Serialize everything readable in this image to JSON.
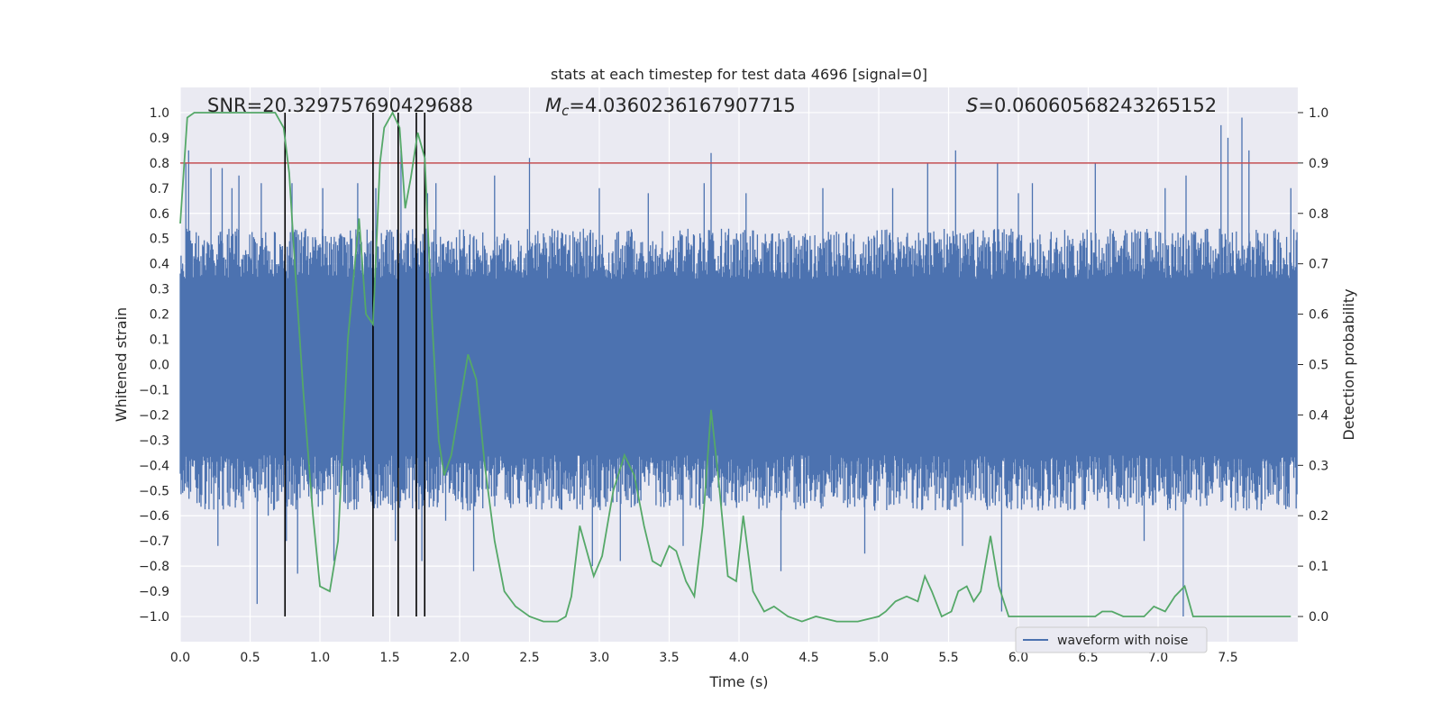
{
  "chart_data": {
    "type": "line",
    "title": "stats at each timestep for test data 4696 [signal=0]",
    "xlabel": "Time (s)",
    "ylabel": "Whitened strain",
    "y2label": "Detection probability",
    "xlim": [
      0.0,
      8.0
    ],
    "ylim": [
      -1.1,
      1.1
    ],
    "y2lim": [
      -0.05,
      1.05
    ],
    "xticks": [
      "0.0",
      "0.5",
      "1.0",
      "1.5",
      "2.0",
      "2.5",
      "3.0",
      "3.5",
      "4.0",
      "4.5",
      "5.0",
      "5.5",
      "6.0",
      "6.5",
      "7.0",
      "7.5"
    ],
    "xtick_values": [
      0.0,
      0.5,
      1.0,
      1.5,
      2.0,
      2.5,
      3.0,
      3.5,
      4.0,
      4.5,
      5.0,
      5.5,
      6.0,
      6.5,
      7.0,
      7.5
    ],
    "yticks": [
      "1.0",
      "0.9",
      "0.8",
      "0.7",
      "0.6",
      "0.5",
      "0.4",
      "0.3",
      "0.2",
      "0.1",
      "0.0",
      "−0.1",
      "−0.2",
      "−0.3",
      "−0.4",
      "−0.5",
      "−0.6",
      "−0.7",
      "−0.8",
      "−0.9",
      "−1.0"
    ],
    "ytick_values": [
      1.0,
      0.9,
      0.8,
      0.7,
      0.6,
      0.5,
      0.4,
      0.3,
      0.2,
      0.1,
      0.0,
      -0.1,
      -0.2,
      -0.3,
      -0.4,
      -0.5,
      -0.6,
      -0.7,
      -0.8,
      -0.9,
      -1.0
    ],
    "y2ticks": [
      "1.0",
      "0.9",
      "0.8",
      "0.7",
      "0.6",
      "0.5",
      "0.4",
      "0.3",
      "0.2",
      "0.1",
      "0.0"
    ],
    "y2tick_values": [
      1.0,
      0.9,
      0.8,
      0.7,
      0.6,
      0.5,
      0.4,
      0.3,
      0.2,
      0.1,
      0.0
    ],
    "grid": true,
    "legend": {
      "placement": "lower-center-right",
      "entries": [
        "waveform with noise"
      ]
    },
    "annotations": {
      "snr": "SNR=20.329757690429688",
      "mc_symbol": "M",
      "mc_sub": "c",
      "mc_value": "=4.0360236167907715",
      "s_symbol": "S",
      "s_value": "=0.06060568243265152"
    },
    "threshold": {
      "value": 0.9,
      "axis": "right",
      "color": "#c44e52"
    },
    "event_lines_x": [
      0.75,
      1.38,
      1.56,
      1.69,
      1.75
    ],
    "series": [
      {
        "name": "waveform with noise",
        "axis": "left",
        "color": "#4c72b0",
        "envelope_typical": 0.4,
        "x_peaks": [
          0.04,
          0.06,
          0.12,
          0.22,
          0.27,
          0.3,
          0.37,
          0.42,
          0.55,
          0.58,
          0.63,
          0.76,
          0.8,
          0.84,
          1.02,
          1.1,
          1.27,
          1.38,
          1.4,
          1.54,
          1.58,
          1.73,
          1.77,
          1.83,
          1.9,
          2.1,
          2.25,
          2.5,
          2.6,
          2.95,
          3.0,
          3.15,
          3.35,
          3.6,
          3.75,
          3.8,
          4.05,
          4.3,
          4.6,
          4.9,
          5.1,
          5.35,
          5.55,
          5.6,
          5.85,
          5.88,
          6.0,
          6.1,
          6.55,
          6.9,
          7.05,
          7.18,
          7.2,
          7.45,
          7.5,
          7.6,
          7.65,
          7.95
        ],
        "y_peaks": [
          0.8,
          0.85,
          -0.55,
          0.78,
          -0.72,
          0.78,
          0.7,
          0.75,
          -0.95,
          0.72,
          -0.6,
          -0.7,
          0.72,
          -0.83,
          0.7,
          -0.78,
          0.72,
          -0.55,
          0.7,
          -0.7,
          0.85,
          -0.78,
          0.68,
          0.72,
          -0.62,
          -0.82,
          0.75,
          0.82,
          -0.55,
          -0.8,
          0.7,
          -0.78,
          0.68,
          -0.72,
          0.72,
          0.84,
          0.68,
          -0.82,
          0.7,
          -0.75,
          0.7,
          0.8,
          0.85,
          -0.72,
          0.8,
          -0.98,
          0.68,
          0.72,
          0.8,
          -0.7,
          0.7,
          -1.0,
          0.75,
          0.95,
          0.9,
          0.98,
          0.85,
          0.7
        ]
      },
      {
        "name": "",
        "axis": "right",
        "color": "#55a868",
        "x": [
          0.0,
          0.05,
          0.1,
          0.2,
          0.3,
          0.4,
          0.5,
          0.6,
          0.68,
          0.74,
          0.78,
          0.82,
          0.88,
          0.95,
          1.0,
          1.07,
          1.13,
          1.2,
          1.28,
          1.33,
          1.38,
          1.43,
          1.46,
          1.52,
          1.57,
          1.61,
          1.65,
          1.7,
          1.75,
          1.8,
          1.85,
          1.89,
          1.94,
          2.0,
          2.06,
          2.12,
          2.18,
          2.25,
          2.32,
          2.4,
          2.5,
          2.6,
          2.7,
          2.76,
          2.8,
          2.86,
          2.92,
          2.96,
          3.02,
          3.1,
          3.18,
          3.25,
          3.32,
          3.38,
          3.44,
          3.5,
          3.55,
          3.62,
          3.68,
          3.74,
          3.8,
          3.85,
          3.92,
          3.98,
          4.03,
          4.1,
          4.18,
          4.25,
          4.35,
          4.45,
          4.55,
          4.7,
          4.85,
          5.0,
          5.05,
          5.12,
          5.2,
          5.28,
          5.33,
          5.38,
          5.45,
          5.52,
          5.57,
          5.63,
          5.68,
          5.73,
          5.8,
          5.86,
          5.93,
          6.0,
          6.1,
          6.25,
          6.45,
          6.55,
          6.6,
          6.67,
          6.75,
          6.82,
          6.9,
          6.97,
          7.05,
          7.12,
          7.19,
          7.25,
          7.3,
          7.45,
          7.6,
          7.8,
          7.95
        ],
        "y": [
          0.78,
          0.99,
          1.0,
          1.0,
          1.0,
          1.0,
          1.0,
          1.0,
          1.0,
          0.97,
          0.88,
          0.7,
          0.45,
          0.2,
          0.06,
          0.05,
          0.15,
          0.55,
          0.79,
          0.6,
          0.58,
          0.9,
          0.97,
          1.0,
          0.97,
          0.81,
          0.87,
          0.96,
          0.91,
          0.6,
          0.35,
          0.28,
          0.32,
          0.42,
          0.52,
          0.47,
          0.3,
          0.15,
          0.05,
          0.02,
          0.0,
          -0.01,
          -0.01,
          0.0,
          0.04,
          0.18,
          0.12,
          0.08,
          0.12,
          0.25,
          0.32,
          0.28,
          0.18,
          0.11,
          0.1,
          0.14,
          0.13,
          0.07,
          0.04,
          0.18,
          0.41,
          0.28,
          0.08,
          0.07,
          0.2,
          0.05,
          0.01,
          0.02,
          0.0,
          -0.01,
          0.0,
          -0.01,
          -0.01,
          0.0,
          0.01,
          0.03,
          0.04,
          0.03,
          0.08,
          0.05,
          0.0,
          0.01,
          0.05,
          0.06,
          0.03,
          0.05,
          0.16,
          0.06,
          0.0,
          0.0,
          0.0,
          0.0,
          0.0,
          0.0,
          0.01,
          0.01,
          0.0,
          0.0,
          0.0,
          0.02,
          0.01,
          0.04,
          0.06,
          0.0,
          0.0,
          0.0,
          0.0,
          0.0,
          0.0
        ]
      }
    ]
  }
}
